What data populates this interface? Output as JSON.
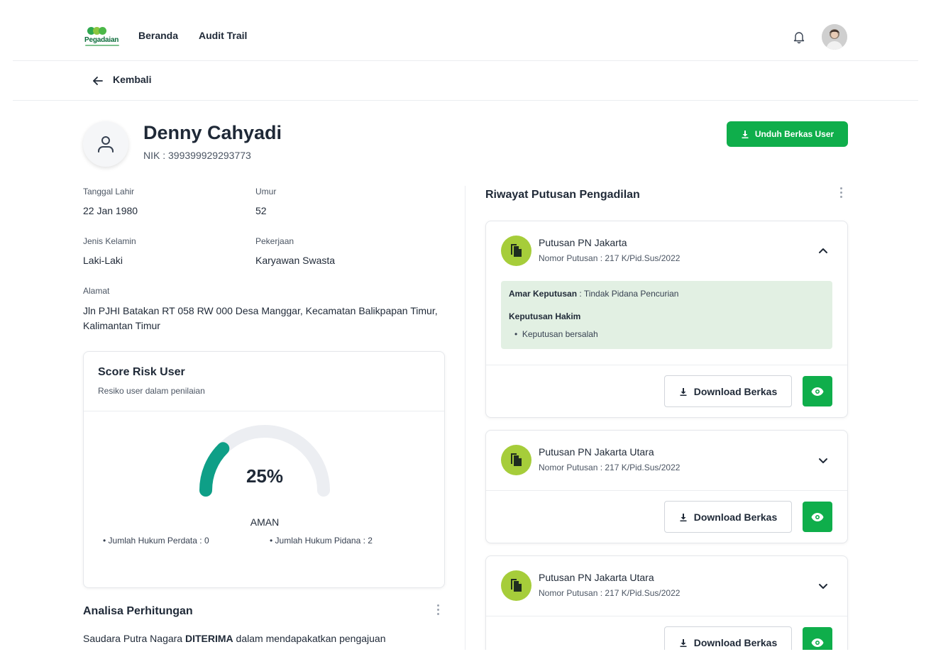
{
  "header": {
    "logo_text": "Pegadaian",
    "nav": [
      "Beranda",
      "Audit Trail"
    ],
    "icons": {
      "notification": "bell-icon",
      "user": "avatar"
    }
  },
  "back": {
    "label": "Kembali"
  },
  "profile": {
    "name": "Denny Cahyadi",
    "nik": "NIK : 399399929293773",
    "download_button": "Unduh Berkas User"
  },
  "info": {
    "birth_label": "Tanggal Lahir",
    "birth_value": "22 Jan 1980",
    "age_label": "Umur",
    "age_value": "52",
    "gender_label": "Jenis Kelamin",
    "gender_value": "Laki-Laki",
    "job_label": "Pekerjaan",
    "job_value": "Karyawan Swasta",
    "address_label": "Alamat",
    "address_value": "Jln PJHI Batakan RT 058 RW 000 Desa Manggar, Kecamatan Balikpapan Timur, Kalimantan Timur"
  },
  "score": {
    "title": "Score Risk User",
    "subtitle": "Resiko user dalam penilaian",
    "percent": 25,
    "percent_label": "25%",
    "status": "AMAN",
    "perdata": "Jumlah Hukum Perdata : 0",
    "pidana": "Jumlah Hukum Pidana : 2",
    "colors": {
      "fill": "#0e9f87",
      "track": "#eceef2"
    }
  },
  "analisa": {
    "title": "Analisa Perhitungan",
    "text_prefix": "Saudara Putra Nagara ",
    "text_bold": "DITERIMA",
    "text_suffix": " dalam mendapakatkan pengajuan"
  },
  "riwayat": {
    "title": "Riwayat Putusan Pengadilan",
    "cases": [
      {
        "title": "Putusan PN Jakarta",
        "number": "Nomor Putusan : 217 K/Pid.Sus/2022",
        "expanded": true,
        "amar_label": "Amar Keputusan",
        "amar_value": " : Tindak Pidana Pencurian",
        "hakim_label": "Keputusan Hakim",
        "hakim_item": "Keputusan bersalah",
        "download": "Download Berkas"
      },
      {
        "title": "Putusan PN Jakarta Utara",
        "number": "Nomor Putusan : 217 K/Pid.Sus/2022",
        "expanded": false,
        "download": "Download Berkas"
      },
      {
        "title": "Putusan PN Jakarta Utara",
        "number": "Nomor Putusan : 217 K/Pid.Sus/2022",
        "expanded": false,
        "download": "Download Berkas"
      }
    ]
  },
  "theme": {
    "primary": "#0fae4b",
    "case_icon": "#a6cd3a",
    "decision_bg": "#e2f0e3"
  }
}
